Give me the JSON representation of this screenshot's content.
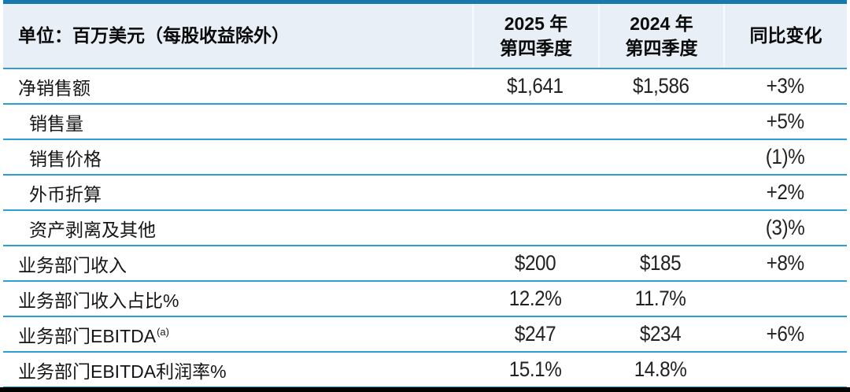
{
  "colors": {
    "top_bar": "#1778ad",
    "header_background": "#e9eff6",
    "header_divider": "#f6fafc",
    "header_bottom_border": "#4099c2",
    "row_separator": "#2b9ed4",
    "bottom_bar": "#1985ba",
    "bottom_bar_tick": "#8ecbe4",
    "black_bar": "#000000",
    "text": "#111111"
  },
  "table": {
    "unit_header": "单位：百万美元（每股收益除外）",
    "col_headers": {
      "q4_2025_line1": "2025 年",
      "q4_2025_line2": "第四季度",
      "q4_2024_line1": "2024 年",
      "q4_2024_line2": "第四季度",
      "yoy": "同比变化"
    },
    "rows": [
      {
        "label": "净销售额",
        "v2025": "$1,641",
        "v2024": "$1,586",
        "yoy": "+3%"
      },
      {
        "label": "销售量",
        "yoy": "+5%"
      },
      {
        "label": "销售价格",
        "yoy": "(1)%"
      },
      {
        "label": "外币折算",
        "yoy": "+2%"
      },
      {
        "label": "资产剥离及其他",
        "yoy": "(3)%"
      },
      {
        "label": "业务部门收入",
        "v2025": "$200",
        "v2024": "$185",
        "yoy": "+8%"
      },
      {
        "label": "业务部门收入占比%",
        "v2025": "12.2%",
        "v2024": "11.7%"
      },
      {
        "label": "业务部门EBITDA",
        "sup": "(a)",
        "v2025": "$247",
        "v2024": "$234",
        "yoy": "+6%"
      },
      {
        "label": "业务部门EBITDA利润率%",
        "v2025": "15.1%",
        "v2024": "14.8%"
      }
    ]
  }
}
